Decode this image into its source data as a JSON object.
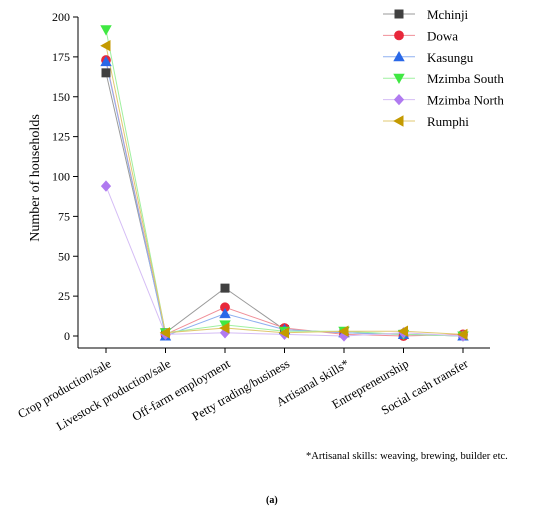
{
  "chart_data": {
    "type": "line",
    "ylabel": "Number of households",
    "xlabel": "",
    "ylim": [
      0,
      200
    ],
    "yticks": [
      0,
      25,
      50,
      75,
      100,
      125,
      150,
      175,
      200
    ],
    "grid": false,
    "legend_position": "top-right",
    "categories": [
      "Crop production/sale",
      "Livestock production/sale",
      "Off-farm employment",
      "Petty trading/business",
      "Artisanal skills*",
      "Entrepreneurship",
      "Social cash transfer"
    ],
    "series": [
      {
        "name": "Mchinji",
        "color": "#404040",
        "line_color": "#9a9a9a",
        "marker": "square",
        "values": [
          165,
          2,
          30,
          4,
          2,
          1,
          0
        ]
      },
      {
        "name": "Dowa",
        "color": "#e8273a",
        "line_color": "#f08f98",
        "marker": "circle",
        "values": [
          173,
          1,
          18,
          5,
          1,
          0,
          1
        ]
      },
      {
        "name": "Kasungu",
        "color": "#2a68e8",
        "line_color": "#8fb0f0",
        "marker": "triangle-up",
        "values": [
          172,
          0,
          14,
          4,
          2,
          1,
          0
        ]
      },
      {
        "name": "Mzimba South",
        "color": "#3fe842",
        "line_color": "#9ff0a0",
        "marker": "triangle-down",
        "values": [
          192,
          2,
          7,
          3,
          3,
          1,
          0
        ]
      },
      {
        "name": "Mzimba North",
        "color": "#b07af0",
        "line_color": "#d5bdf5",
        "marker": "diamond",
        "values": [
          94,
          1,
          2,
          1,
          0,
          2,
          0
        ]
      },
      {
        "name": "Rumphi",
        "color": "#c49a00",
        "line_color": "#e0c870",
        "marker": "triangle-left",
        "values": [
          182,
          2,
          5,
          2,
          3,
          3,
          1
        ]
      }
    ]
  },
  "footnote": "*Artisanal skills: weaving, brewing, builder etc.",
  "panel_label": "(a)"
}
